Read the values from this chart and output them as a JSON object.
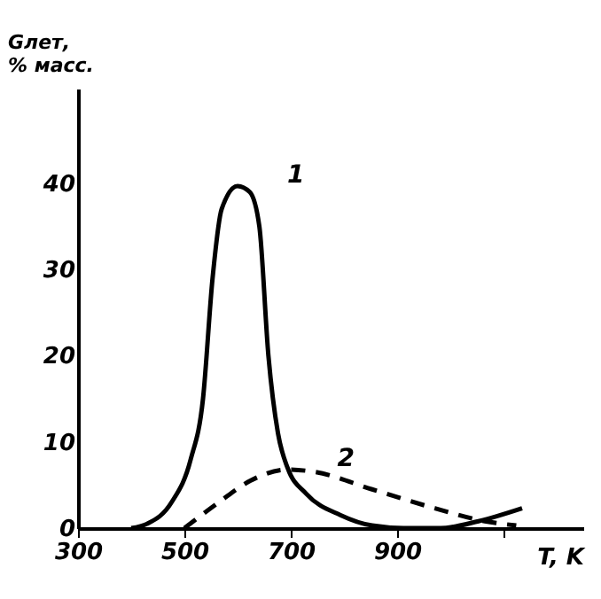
{
  "chart_data": {
    "type": "line",
    "xlabel": "T, K",
    "ylabel": "Gлет, % масс.",
    "xlim": [
      300,
      1250
    ],
    "xticks": [
      300,
      500,
      700,
      900,
      {
        "value": 1100,
        "label": null
      }
    ],
    "ylim": [
      0,
      51
    ],
    "yticks": [
      0,
      10,
      20,
      30,
      40
    ],
    "grid": false,
    "marker": "none",
    "series": [
      {
        "name": "1",
        "color": "#000000",
        "line_style": "solid",
        "x": [
          400,
          430,
          476,
          512,
          535,
          553,
          570,
          600,
          623,
          641,
          658,
          676,
          694,
          729,
          794,
          853,
          912,
          982,
          1053,
          1135
        ],
        "values": [
          0,
          0.5,
          3,
          8,
          15,
          29,
          37,
          39.7,
          39,
          35,
          20,
          11,
          7,
          4,
          1.5,
          0.3,
          0,
          0,
          0.8,
          2.3
        ]
      },
      {
        "name": "2",
        "color": "#000000",
        "line_style": "dashed",
        "x": [
          500,
          565,
          624,
          694,
          747,
          853,
          971,
          1065,
          1124
        ],
        "values": [
          0,
          3,
          5.5,
          6.8,
          6.5,
          4.5,
          2.3,
          0.8,
          0.3
        ]
      }
    ]
  }
}
